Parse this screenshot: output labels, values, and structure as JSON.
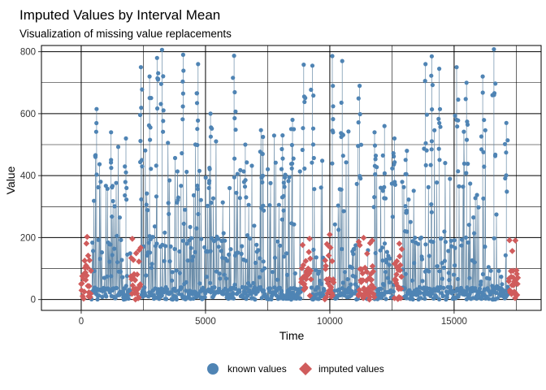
{
  "chart_data": {
    "type": "scatter",
    "title": "Imputed Values by Interval Mean",
    "subtitle": "Visualization of missing value replacements",
    "xlabel": "Time",
    "ylabel": "Value",
    "xlim": [
      -1600,
      18500
    ],
    "ylim": [
      -35,
      820
    ],
    "xticks": [
      0,
      5000,
      10000,
      15000
    ],
    "xtick_labels": [
      "0",
      "5000",
      "10000",
      "15000"
    ],
    "yticks": [
      0,
      200,
      400,
      600,
      800
    ],
    "ytick_labels": [
      "0",
      "200",
      "400",
      "600",
      "800"
    ],
    "grid": true,
    "legend_position": "bottom",
    "n_points": 17568,
    "series": [
      {
        "name": "known values",
        "color": "#4f84b4",
        "marker": "circle",
        "line": true,
        "description_value_range": [
          0,
          806
        ],
        "peaks": [
          [
            620,
            615
          ],
          [
            1200,
            540
          ],
          [
            1800,
            520
          ],
          [
            2400,
            750
          ],
          [
            2750,
            720
          ],
          [
            3050,
            780
          ],
          [
            3250,
            806
          ],
          [
            4100,
            790
          ],
          [
            4700,
            760
          ],
          [
            5200,
            600
          ],
          [
            6150,
            787
          ],
          [
            6600,
            500
          ],
          [
            7300,
            470
          ],
          [
            8100,
            530
          ],
          [
            8500,
            580
          ],
          [
            8950,
            758
          ],
          [
            9300,
            755
          ],
          [
            10100,
            786
          ],
          [
            10500,
            770
          ],
          [
            11200,
            690
          ],
          [
            11800,
            540
          ],
          [
            12200,
            560
          ],
          [
            12600,
            520
          ],
          [
            13100,
            480
          ],
          [
            13850,
            760
          ],
          [
            14100,
            785
          ],
          [
            14400,
            745
          ],
          [
            15100,
            750
          ],
          [
            15500,
            700
          ],
          [
            16150,
            720
          ],
          [
            16600,
            808
          ],
          [
            17100,
            570
          ]
        ]
      },
      {
        "name": "imputed values",
        "color": "#d05c5c",
        "marker": "diamond",
        "line": false,
        "gap_ranges": [
          [
            0,
            400
          ],
          [
            2000,
            2400
          ],
          [
            8850,
            9250
          ],
          [
            9800,
            10150
          ],
          [
            11150,
            11500
          ],
          [
            11550,
            11800
          ],
          [
            12600,
            12900
          ],
          [
            17200,
            17568
          ]
        ],
        "value_range": [
          0,
          210
        ]
      }
    ]
  }
}
